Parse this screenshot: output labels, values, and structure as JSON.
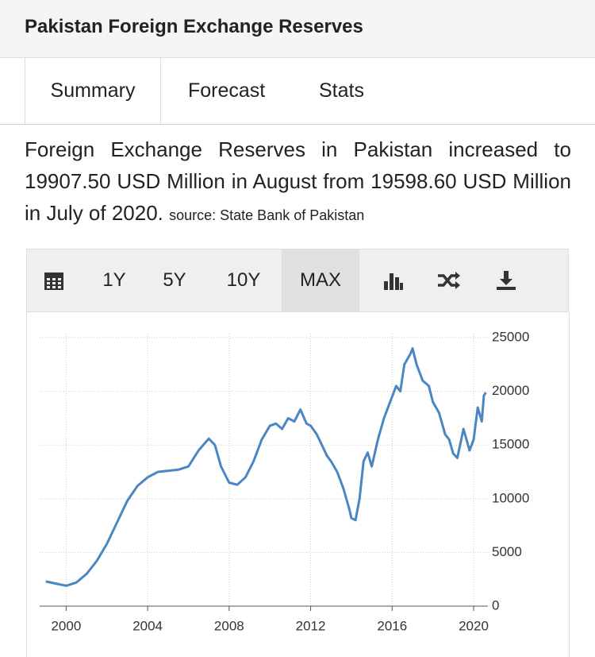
{
  "header": {
    "title": "Pakistan Foreign Exchange Reserves"
  },
  "tabs": [
    "Summary",
    "Forecast",
    "Stats"
  ],
  "description": {
    "text": "Foreign Exchange Reserves in Pakistan increased to 19907.50 USD Million in August from 19598.60 USD Million in July of 2020.",
    "source": "source: State Bank of Pakistan"
  },
  "toolbar": [
    "1Y",
    "5Y",
    "10Y",
    "MAX"
  ],
  "chart_data": {
    "type": "line",
    "color": "#4a87c2",
    "x": [
      1999.0,
      1999.5,
      2000.0,
      2000.5,
      2001.0,
      2001.5,
      2002.0,
      2002.5,
      2003.0,
      2003.5,
      2004.0,
      2004.5,
      2005.0,
      2005.5,
      2006.0,
      2006.5,
      2007.0,
      2007.3,
      2007.6,
      2008.0,
      2008.4,
      2008.8,
      2009.2,
      2009.6,
      2010.0,
      2010.3,
      2010.6,
      2010.9,
      2011.2,
      2011.5,
      2011.8,
      2012.0,
      2012.3,
      2012.6,
      2012.8,
      2013.0,
      2013.3,
      2013.6,
      2013.9,
      2014.0,
      2014.2,
      2014.4,
      2014.6,
      2014.8,
      2015.0,
      2015.3,
      2015.6,
      2015.9,
      2016.2,
      2016.4,
      2016.6,
      2016.9,
      2017.0,
      2017.2,
      2017.5,
      2017.8,
      2018.0,
      2018.3,
      2018.6,
      2018.8,
      2019.0,
      2019.2,
      2019.5,
      2019.8,
      2020.0,
      2020.2,
      2020.4,
      2020.5,
      2020.6
    ],
    "values": [
      2300,
      2100,
      1900,
      2200,
      3000,
      4200,
      5800,
      7800,
      9800,
      11200,
      12000,
      12500,
      12600,
      12700,
      13000,
      14500,
      15600,
      15000,
      13000,
      11500,
      11300,
      12000,
      13500,
      15500,
      16800,
      17000,
      16500,
      17500,
      17200,
      18300,
      17000,
      16800,
      16000,
      14800,
      14000,
      13500,
      12500,
      11000,
      9000,
      8200,
      8000,
      10000,
      13500,
      14300,
      13000,
      15500,
      17500,
      19000,
      20500,
      20000,
      22500,
      23500,
      24000,
      22500,
      21000,
      20500,
      19000,
      18000,
      16000,
      15500,
      14200,
      13800,
      16500,
      14500,
      15500,
      18500,
      17200,
      19600,
      19900
    ],
    "xlim": [
      1998.7,
      2020.7
    ],
    "xticks": [
      2000,
      2004,
      2008,
      2012,
      2016,
      2020
    ],
    "ylim": [
      0,
      25000
    ],
    "yticks": [
      0,
      5000,
      10000,
      15000,
      20000,
      25000
    ],
    "grid": true
  }
}
